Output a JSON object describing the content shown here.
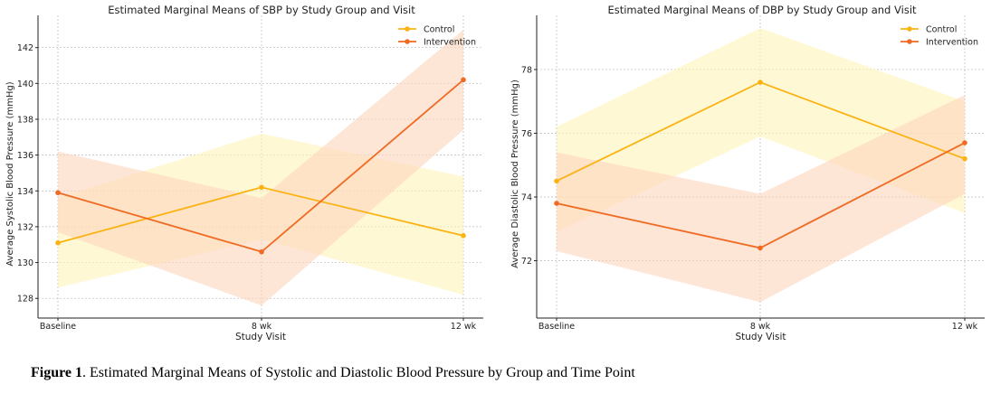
{
  "chart_data": [
    {
      "type": "line",
      "title": "Estimated Marginal Means of SBP by Study Group and Visit",
      "xlabel": "Study Visit",
      "ylabel": "Average Systolic Blood Pressure (mmHg)",
      "categories": [
        "Baseline",
        "8 wk",
        "12 wk"
      ],
      "ylim": [
        126.9,
        143.8
      ],
      "yticks": [
        128,
        130,
        132,
        134,
        136,
        138,
        140,
        142
      ],
      "grid": true,
      "legend": "top-right",
      "series": [
        {
          "name": "Control",
          "color": "#fbb314",
          "band_color": "#fff3b8",
          "values": [
            131.1,
            134.2,
            131.5
          ],
          "lower": [
            128.6,
            131.3,
            128.2
          ],
          "upper": [
            133.6,
            137.2,
            134.8
          ]
        },
        {
          "name": "Intervention",
          "color": "#f06a23",
          "band_color": "#fdd6bd",
          "values": [
            133.9,
            130.6,
            140.2
          ],
          "lower": [
            131.7,
            127.6,
            137.4
          ],
          "upper": [
            136.2,
            133.6,
            143.0
          ]
        }
      ]
    },
    {
      "type": "line",
      "title": "Estimated Marginal Means of DBP by Study Group and Visit",
      "xlabel": "Study Visit",
      "ylabel": "Average Diastolic Blood Pressure (mmHg)",
      "categories": [
        "Baseline",
        "8 wk",
        "12 wk"
      ],
      "ylim": [
        70.2,
        79.7
      ],
      "yticks": [
        72,
        74,
        76,
        78
      ],
      "grid": true,
      "legend": "top-right",
      "series": [
        {
          "name": "Control",
          "color": "#fbb314",
          "band_color": "#fff3b8",
          "values": [
            74.5,
            77.6,
            75.2
          ],
          "lower": [
            72.9,
            75.9,
            73.5
          ],
          "upper": [
            76.2,
            79.3,
            77.0
          ]
        },
        {
          "name": "Intervention",
          "color": "#f06a23",
          "band_color": "#fdd6bd",
          "values": [
            73.8,
            72.4,
            75.7
          ],
          "lower": [
            72.3,
            70.7,
            74.1
          ],
          "upper": [
            75.4,
            74.1,
            77.2
          ]
        }
      ]
    }
  ],
  "caption": {
    "label": "Figure 1",
    "text": ". Estimated Marginal Means of Systolic and Diastolic Blood Pressure by Group and Time Point"
  }
}
